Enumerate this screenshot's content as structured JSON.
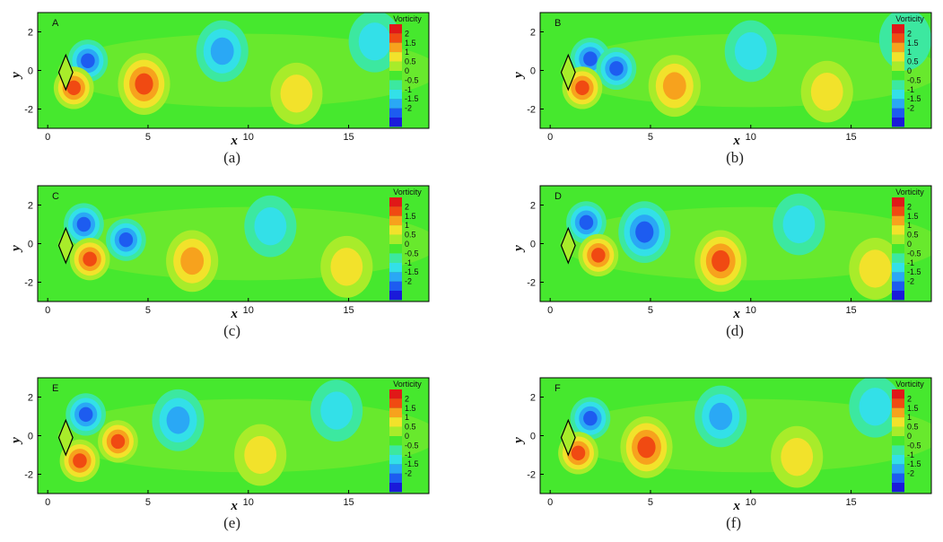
{
  "colors": {
    "background": "#46e82e",
    "levels": [
      "#1a1ad9",
      "#1d5cf0",
      "#2aa8f5",
      "#33e0e8",
      "#3ce8a0",
      "#46e82e",
      "#a8ec2a",
      "#f2e22b",
      "#f7a21d",
      "#f04a12",
      "#e01818"
    ]
  },
  "chart_data": [
    {
      "type": "heatmap",
      "panel": "A",
      "caption": "(a)",
      "title": "",
      "xlabel": "x",
      "ylabel": "y",
      "xlim": [
        -0.5,
        19
      ],
      "ylim": [
        -3,
        3
      ],
      "xticks": [
        "0",
        "5",
        "10",
        "15"
      ],
      "yticks": [
        "2",
        "0",
        "-2"
      ],
      "legend": {
        "title": "Vorticity",
        "levels": [
          "2",
          "1.5",
          "1",
          "0.5",
          "0",
          "-0.5",
          "-1",
          "-1.5",
          "-2"
        ],
        "placement": "top-right"
      },
      "vortices": [
        {
          "x": 2.0,
          "y": 0.5,
          "vorticity": -2
        },
        {
          "x": 1.3,
          "y": -0.9,
          "vorticity": 2
        },
        {
          "x": 4.8,
          "y": -0.7,
          "vorticity": 1.8
        },
        {
          "x": 8.7,
          "y": 1.0,
          "vorticity": -1.6
        },
        {
          "x": 12.4,
          "y": -1.2,
          "vorticity": 1.1
        },
        {
          "x": 16.3,
          "y": 1.5,
          "vorticity": -0.9
        }
      ]
    },
    {
      "type": "heatmap",
      "panel": "B",
      "caption": "(b)",
      "title": "",
      "xlabel": "x",
      "ylabel": "y",
      "xlim": [
        -0.5,
        19
      ],
      "ylim": [
        -3,
        3
      ],
      "xticks": [
        "0",
        "5",
        "10",
        "15"
      ],
      "yticks": [
        "2",
        "0",
        "-2"
      ],
      "legend": {
        "title": "Vorticity",
        "levels": [
          "2",
          "1.5",
          "1",
          "0.5",
          "0",
          "-0.5",
          "-1",
          "-1.5",
          "-2"
        ],
        "placement": "top-right"
      },
      "vortices": [
        {
          "x": 2.0,
          "y": 0.6,
          "vorticity": -2
        },
        {
          "x": 3.3,
          "y": 0.1,
          "vorticity": -1.9
        },
        {
          "x": 1.6,
          "y": -0.9,
          "vorticity": 2
        },
        {
          "x": 6.2,
          "y": -0.8,
          "vorticity": 1.6
        },
        {
          "x": 10.0,
          "y": 1.0,
          "vorticity": -1.2
        },
        {
          "x": 13.8,
          "y": -1.1,
          "vorticity": 1.0
        },
        {
          "x": 17.7,
          "y": 1.6,
          "vorticity": -0.7
        }
      ]
    },
    {
      "type": "heatmap",
      "panel": "C",
      "caption": "(c)",
      "title": "",
      "xlabel": "x",
      "ylabel": "y",
      "xlim": [
        -0.5,
        19
      ],
      "ylim": [
        -3,
        3
      ],
      "xticks": [
        "0",
        "5",
        "10",
        "15"
      ],
      "yticks": [
        "2",
        "0",
        "-2"
      ],
      "legend": {
        "title": "Vorticity",
        "levels": [
          "2",
          "1.5",
          "1",
          "0.5",
          "0",
          "-0.5",
          "-1",
          "-1.5",
          "-2"
        ],
        "placement": "top-right"
      },
      "vortices": [
        {
          "x": 1.8,
          "y": 1.0,
          "vorticity": -2
        },
        {
          "x": 3.9,
          "y": 0.2,
          "vorticity": -1.8
        },
        {
          "x": 2.1,
          "y": -0.8,
          "vorticity": 2
        },
        {
          "x": 7.2,
          "y": -0.9,
          "vorticity": 1.6
        },
        {
          "x": 11.1,
          "y": 0.9,
          "vorticity": -1.1
        },
        {
          "x": 14.9,
          "y": -1.2,
          "vorticity": 1.0
        }
      ]
    },
    {
      "type": "heatmap",
      "panel": "D",
      "caption": "(d)",
      "title": "",
      "xlabel": "x",
      "ylabel": "y",
      "xlim": [
        -0.5,
        19
      ],
      "ylim": [
        -3,
        3
      ],
      "xticks": [
        "0",
        "5",
        "10",
        "15"
      ],
      "yticks": [
        "2",
        "0",
        "-2"
      ],
      "legend": {
        "title": "Vorticity",
        "levels": [
          "2",
          "1.5",
          "1",
          "0.5",
          "0",
          "-0.5",
          "-1",
          "-1.5",
          "-2"
        ],
        "placement": "top-right"
      },
      "vortices": [
        {
          "x": 1.8,
          "y": 1.1,
          "vorticity": -2
        },
        {
          "x": 4.7,
          "y": 0.6,
          "vorticity": -1.9
        },
        {
          "x": 2.4,
          "y": -0.6,
          "vorticity": 2
        },
        {
          "x": 8.5,
          "y": -0.9,
          "vorticity": 1.8
        },
        {
          "x": 12.4,
          "y": 1.0,
          "vorticity": -1.1
        },
        {
          "x": 16.2,
          "y": -1.3,
          "vorticity": 1.0
        }
      ]
    },
    {
      "type": "heatmap",
      "panel": "E",
      "caption": "(e)",
      "title": "",
      "xlabel": "x",
      "ylabel": "y",
      "xlim": [
        -0.5,
        19
      ],
      "ylim": [
        -3,
        3
      ],
      "xticks": [
        "0",
        "5",
        "10",
        "15"
      ],
      "yticks": [
        "2",
        "0",
        "-2"
      ],
      "legend": {
        "title": "Vorticity",
        "levels": [
          "2",
          "1.5",
          "1",
          "0.5",
          "0",
          "-0.5",
          "-1",
          "-1.5",
          "-2"
        ],
        "placement": "top-right"
      },
      "vortices": [
        {
          "x": 1.9,
          "y": 1.1,
          "vorticity": -2
        },
        {
          "x": 3.5,
          "y": -0.3,
          "vorticity": 2
        },
        {
          "x": 1.6,
          "y": -1.3,
          "vorticity": 2
        },
        {
          "x": 6.5,
          "y": 0.8,
          "vorticity": -1.5
        },
        {
          "x": 10.6,
          "y": -1.0,
          "vorticity": 1.1
        },
        {
          "x": 14.4,
          "y": 1.3,
          "vorticity": -1.0
        }
      ]
    },
    {
      "type": "heatmap",
      "panel": "F",
      "caption": "(f)",
      "title": "",
      "xlabel": "x",
      "ylabel": "y",
      "xlim": [
        -0.5,
        19
      ],
      "ylim": [
        -3,
        3
      ],
      "xticks": [
        "0",
        "5",
        "10",
        "15"
      ],
      "yticks": [
        "2",
        "0",
        "-2"
      ],
      "legend": {
        "title": "Vorticity",
        "levels": [
          "2",
          "1.5",
          "1",
          "0.5",
          "0",
          "-0.5",
          "-1",
          "-1.5",
          "-2"
        ],
        "placement": "top-right"
      },
      "vortices": [
        {
          "x": 2.0,
          "y": 0.9,
          "vorticity": -2
        },
        {
          "x": 1.4,
          "y": -0.9,
          "vorticity": 2
        },
        {
          "x": 4.8,
          "y": -0.6,
          "vorticity": 1.8
        },
        {
          "x": 8.5,
          "y": 1.0,
          "vorticity": -1.5
        },
        {
          "x": 12.3,
          "y": -1.1,
          "vorticity": 1.1
        },
        {
          "x": 16.2,
          "y": 1.5,
          "vorticity": -0.9
        }
      ]
    }
  ]
}
